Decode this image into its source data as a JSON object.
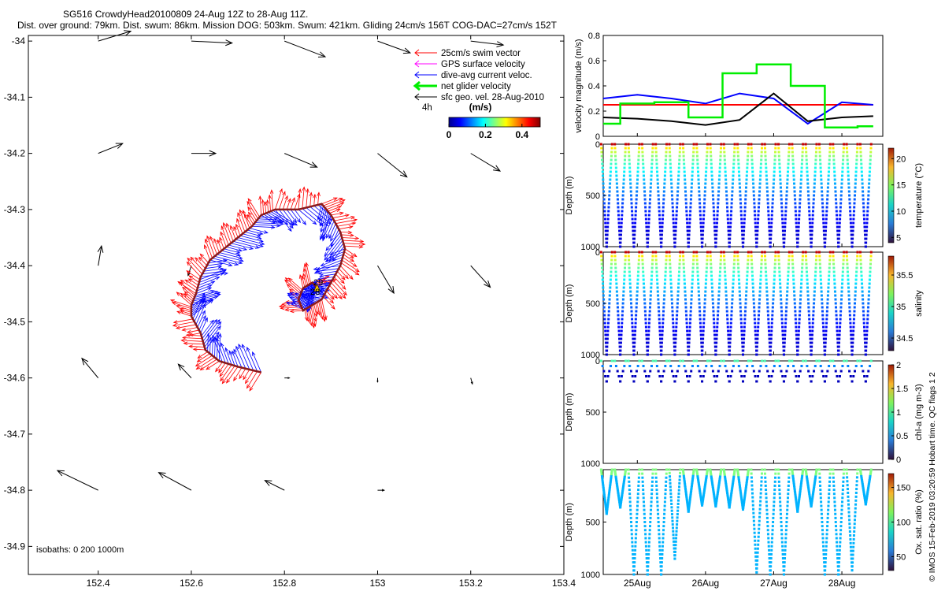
{
  "header": {
    "line1": "SG516 CrowdyHead20100809 24-Aug 12Z to 28-Aug 11Z.",
    "line2": "Dist. over ground: 79km. Dist. swum: 86km. Mission DOG: 503km. Swum: 421km. Gliding 24cm/s 156T COG-DAC=27cm/s 152T"
  },
  "colors": {
    "swim": "#ff0000",
    "gps": "#ff00ff",
    "dac": "#0000ff",
    "net": "#00ee00",
    "sfc": "#000000",
    "track": "#8b1a1a"
  },
  "map": {
    "x_ticks": [
      "152.4",
      "152.6",
      "152.8",
      "153",
      "153.2",
      "153.4"
    ],
    "y_ticks": [
      "-34",
      "-34.1",
      "-34.2",
      "-34.3",
      "-34.4",
      "-34.5",
      "-34.6",
      "-34.7",
      "-34.8",
      "-34.9"
    ],
    "xlim": [
      152.25,
      153.4
    ],
    "ylim": [
      -34.95,
      -33.99
    ],
    "legend": [
      {
        "label": "25cm/s swim vector",
        "color_key": "swim",
        "thick": false
      },
      {
        "label": "GPS surface velocity",
        "color_key": "gps",
        "thick": false
      },
      {
        "label": "dive-avg current veloc.",
        "color_key": "dac",
        "thick": false
      },
      {
        "label": "net glider velocity",
        "color_key": "net",
        "thick": true
      },
      {
        "label": "sfc geo. vel. 28-Aug-2010",
        "color_key": "sfc",
        "thick": false
      }
    ],
    "legend_note": "4h",
    "colorbar_title": "(m/s)",
    "colorbar_ticks": [
      "0",
      "0.2",
      "0.4"
    ],
    "isobaths_label": "isobaths: 0   200  1000m",
    "start_label": "29",
    "end_label": "28"
  },
  "velocity_panel": {
    "ylabel": "velocity magnitude (m/s)",
    "y_ticks": [
      "0",
      "0.2",
      "0.4",
      "0.6",
      "0.8"
    ],
    "ylim": [
      0,
      0.8
    ]
  },
  "profile_panels": [
    {
      "id": "temperature",
      "ylabel": "Depth (m)",
      "y_ticks": [
        "0",
        "500",
        "1000"
      ],
      "cbar_label": "temperature (°C)",
      "cbar_ticks": [
        "5",
        "10",
        "15",
        "20"
      ]
    },
    {
      "id": "salinity",
      "ylabel": "Depth (m)",
      "y_ticks": [
        "0",
        "500",
        "1000"
      ],
      "cbar_label": "salinity",
      "cbar_ticks": [
        "34.5",
        "35",
        "35.5"
      ]
    },
    {
      "id": "chl",
      "ylabel": "Depth (m)",
      "y_ticks": [
        "0",
        "500",
        "1000"
      ],
      "cbar_label": "chl-a (mg m-3)",
      "cbar_ticks": [
        "0",
        "0.5",
        "1",
        "1.5",
        "2"
      ]
    },
    {
      "id": "oxygen",
      "ylabel": "Depth (m)",
      "y_ticks": [
        "500",
        "1000"
      ],
      "cbar_label": "Ox. sat. ratio (%)",
      "cbar_ticks": [
        "50",
        "100",
        "150"
      ]
    }
  ],
  "time_ticks": [
    "25Aug",
    "26Aug",
    "27Aug",
    "28Aug"
  ],
  "side_note": "© IMOS 15-Feb-2019 03:20:59 Hobart time. QC flags 1  2",
  "chart_data": [
    {
      "type": "scatter",
      "title": "SG516 CrowdyHead20100809 24-Aug 12Z to 28-Aug 11Z.",
      "xlim": [
        152.25,
        153.4
      ],
      "ylim": [
        -34.95,
        -33.99
      ],
      "track_lon": [
        152.75,
        152.7,
        152.66,
        152.63,
        152.62,
        152.6,
        152.6,
        152.61,
        152.62,
        152.64,
        152.67,
        152.7,
        152.73,
        152.75,
        152.78,
        152.83,
        152.88,
        152.9,
        152.92,
        152.93,
        152.92,
        152.9,
        152.88,
        152.86,
        152.84,
        152.83,
        152.84,
        152.86,
        152.87
      ],
      "track_lat": [
        -34.59,
        -34.58,
        -34.57,
        -34.55,
        -34.52,
        -34.49,
        -34.47,
        -34.45,
        -34.42,
        -34.39,
        -34.37,
        -34.35,
        -34.33,
        -34.31,
        -34.3,
        -34.3,
        -34.29,
        -34.31,
        -34.34,
        -34.37,
        -34.4,
        -34.43,
        -34.46,
        -34.47,
        -34.48,
        -34.46,
        -34.44,
        -34.43,
        -34.44
      ],
      "sfc_arrows": [
        {
          "lon": 152.4,
          "lat": -34.0,
          "u": 0.2,
          "v": 0.05
        },
        {
          "lon": 152.6,
          "lat": -34.0,
          "u": 0.25,
          "v": -0.01
        },
        {
          "lon": 152.8,
          "lat": -34.0,
          "u": 0.25,
          "v": -0.08
        },
        {
          "lon": 153.0,
          "lat": -34.0,
          "u": 0.2,
          "v": -0.06
        },
        {
          "lon": 153.2,
          "lat": -34.0,
          "u": 0.2,
          "v": -0.02
        },
        {
          "lon": 152.4,
          "lat": -34.2,
          "u": 0.15,
          "v": 0.05
        },
        {
          "lon": 152.6,
          "lat": -34.2,
          "u": 0.15,
          "v": 0.0
        },
        {
          "lon": 152.8,
          "lat": -34.2,
          "u": 0.2,
          "v": -0.07
        },
        {
          "lon": 153.0,
          "lat": -34.2,
          "u": 0.18,
          "v": -0.12
        },
        {
          "lon": 153.2,
          "lat": -34.2,
          "u": 0.18,
          "v": -0.09
        },
        {
          "lon": 152.4,
          "lat": -34.4,
          "u": 0.02,
          "v": 0.1
        },
        {
          "lon": 152.6,
          "lat": -34.4,
          "u": -0.02,
          "v": -0.05
        },
        {
          "lon": 153.0,
          "lat": -34.4,
          "u": 0.1,
          "v": -0.14
        },
        {
          "lon": 153.2,
          "lat": -34.4,
          "u": 0.12,
          "v": -0.11
        },
        {
          "lon": 152.4,
          "lat": -34.6,
          "u": -0.1,
          "v": 0.1
        },
        {
          "lon": 152.6,
          "lat": -34.6,
          "u": -0.08,
          "v": 0.07
        },
        {
          "lon": 152.8,
          "lat": -34.6,
          "u": 0.03,
          "v": 0.0
        },
        {
          "lon": 153.0,
          "lat": -34.6,
          "u": 0.0,
          "v": -0.02
        },
        {
          "lon": 153.2,
          "lat": -34.6,
          "u": 0.01,
          "v": -0.03
        },
        {
          "lon": 152.4,
          "lat": -34.8,
          "u": -0.25,
          "v": 0.1
        },
        {
          "lon": 152.6,
          "lat": -34.8,
          "u": -0.2,
          "v": 0.09
        },
        {
          "lon": 152.8,
          "lat": -34.8,
          "u": -0.12,
          "v": 0.05
        },
        {
          "lon": 153.0,
          "lat": -34.8,
          "u": 0.04,
          "v": 0.0
        },
        {
          "lon": 153.2,
          "lat": -34.8,
          "u": 0.0,
          "v": 0.0
        }
      ]
    },
    {
      "type": "line",
      "ylabel": "velocity magnitude (m/s)",
      "ylim": [
        0,
        0.8
      ],
      "x_days": [
        24.5,
        25.0,
        25.5,
        26.0,
        26.5,
        27.0,
        27.5,
        28.0,
        28.46
      ],
      "series": [
        {
          "color_key": "swim",
          "values": [
            0.25,
            0.25,
            0.25,
            0.25,
            0.25,
            0.25,
            0.25,
            0.25,
            0.25
          ]
        },
        {
          "color_key": "dac",
          "values": [
            0.3,
            0.33,
            0.3,
            0.26,
            0.34,
            0.3,
            0.1,
            0.27,
            0.25
          ]
        },
        {
          "color_key": "sfc",
          "values": [
            0.15,
            0.14,
            0.12,
            0.09,
            0.13,
            0.34,
            0.12,
            0.15,
            0.16
          ]
        },
        {
          "color_key": "net",
          "values": [
            0.1,
            0.26,
            0.27,
            0.15,
            0.5,
            0.57,
            0.4,
            0.07,
            0.08
          ]
        }
      ]
    },
    {
      "type": "scatter",
      "ylabel": "Depth (m)",
      "x_days": [
        24.55,
        24.75,
        24.95,
        25.15,
        25.35,
        25.55,
        25.75,
        25.95,
        26.15,
        26.35,
        26.55,
        26.75,
        26.95,
        27.15,
        27.35,
        27.55,
        27.75,
        27.95,
        28.15,
        28.35
      ],
      "max_depth": [
        1000,
        1000,
        1000,
        1000,
        1000,
        1000,
        1000,
        1000,
        1000,
        1000,
        1000,
        1000,
        1000,
        1000,
        1000,
        1000,
        1000,
        1000,
        1000,
        1000
      ],
      "cbar_label": "temperature (°C)",
      "color_range": [
        4,
        22
      ]
    },
    {
      "type": "scatter",
      "ylabel": "Depth (m)",
      "x_days": [
        24.55,
        24.75,
        24.95,
        25.15,
        25.35,
        25.55,
        25.75,
        25.95,
        26.15,
        26.35,
        26.55,
        26.75,
        26.95,
        27.15,
        27.35,
        27.55,
        27.75,
        27.95,
        28.15,
        28.35
      ],
      "max_depth": [
        1000,
        1000,
        1000,
        1000,
        1000,
        1000,
        1000,
        1000,
        1000,
        1000,
        1000,
        1000,
        1000,
        1000,
        1000,
        1000,
        1000,
        1000,
        1000,
        1000
      ],
      "cbar_label": "salinity",
      "color_range": [
        34.3,
        35.8
      ]
    },
    {
      "type": "scatter",
      "ylabel": "Depth (m)",
      "x_days": [
        24.55,
        24.75,
        24.95,
        25.15,
        25.35,
        25.55,
        25.75,
        25.95,
        26.15,
        26.35,
        26.55,
        26.75,
        26.95,
        27.15,
        27.35,
        27.55,
        27.75,
        27.95,
        28.15,
        28.35
      ],
      "max_depth": [
        200,
        200,
        200,
        200,
        200,
        200,
        200,
        200,
        200,
        200,
        200,
        200,
        200,
        200,
        200,
        200,
        200,
        200,
        200,
        200
      ],
      "cbar_label": "chl-a (mg m-3)",
      "color_range": [
        0,
        2
      ]
    },
    {
      "type": "scatter",
      "ylabel": "Depth (m)",
      "x_days": [
        24.55,
        24.75,
        24.95,
        25.15,
        25.35,
        25.55,
        25.75,
        25.95,
        26.15,
        26.35,
        26.55,
        26.75,
        26.95,
        27.15,
        27.35,
        27.55,
        27.75,
        27.95,
        28.15,
        28.35
      ],
      "max_depth": [
        420,
        360,
        1000,
        1000,
        1000,
        850,
        400,
        340,
        350,
        360,
        380,
        980,
        1000,
        1000,
        400,
        350,
        1000,
        1000,
        960,
        330
      ],
      "cbar_label": "Ox. sat. ratio (%)",
      "color_range": [
        30,
        170
      ]
    }
  ]
}
